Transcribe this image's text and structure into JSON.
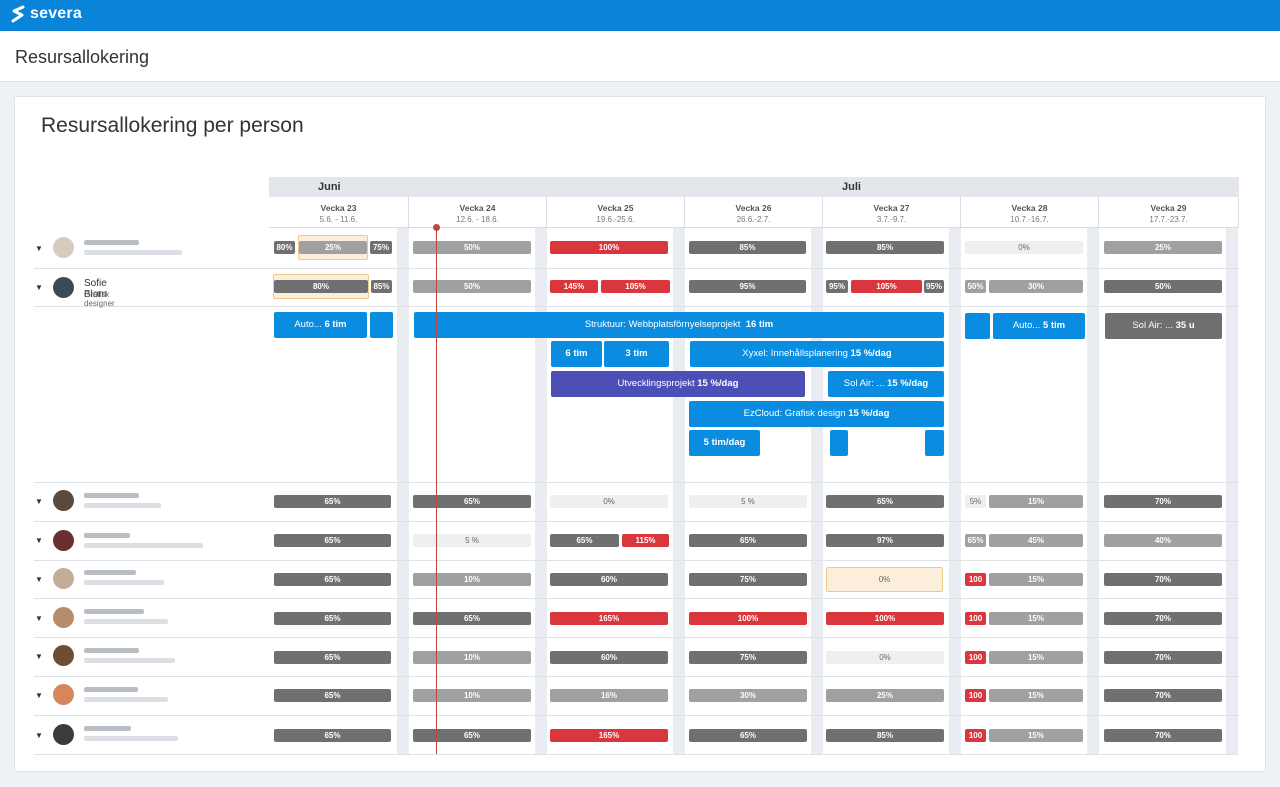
{
  "app": {
    "name": "severa",
    "brand_color": "#0a84d8"
  },
  "page": {
    "title": "Resursallokering"
  },
  "card": {
    "title": "Resursallokering per person"
  },
  "months": [
    {
      "label": "Juni"
    },
    {
      "label": "Juli"
    }
  ],
  "weeks": [
    {
      "name": "Vecka 23",
      "range": "5.6. - 11.6."
    },
    {
      "name": "Vecka 24",
      "range": "12.6. - 18.6."
    },
    {
      "name": "Vecka 25",
      "range": "19.6.-25.6."
    },
    {
      "name": "Vecka 26",
      "range": "26.6.-2.7."
    },
    {
      "name": "Vecka 27",
      "range": "3.7.-9.7."
    },
    {
      "name": "Vecka 28",
      "range": "10.7.-16.7."
    },
    {
      "name": "Vecka 29",
      "range": "17.7.-23.7."
    }
  ],
  "person": {
    "name": "Sofie Blom",
    "role": "Grafisk designer"
  },
  "allocations": {
    "row1": [
      "80%",
      "25%",
      "75%",
      "50%",
      "100%",
      "85%",
      "85%",
      "0%",
      "25%"
    ],
    "row2": [
      "80%",
      "85%",
      "50%",
      "145%",
      "105%",
      "95%",
      "95%",
      "105%",
      "95%",
      "50%",
      "30%",
      "50%"
    ],
    "row3": [
      "65%",
      "65%",
      "0%",
      "5 %",
      "65%",
      "5%",
      "15%",
      "70%"
    ],
    "row4": [
      "65%",
      "5 %",
      "65%",
      "115%",
      "65%",
      "97%",
      "65%",
      "45%",
      "40%"
    ],
    "row5": [
      "65%",
      "10%",
      "60%",
      "75%",
      "0%",
      "100",
      "15%",
      "70%"
    ],
    "row6": [
      "65%",
      "65%",
      "165%",
      "100%",
      "100%",
      "100",
      "15%",
      "70%"
    ],
    "row7": [
      "65%",
      "10%",
      "60%",
      "75%",
      "0%",
      "100",
      "15%",
      "70%"
    ],
    "row8": [
      "65%",
      "10%",
      "16%",
      "30%",
      "25%",
      "100",
      "15%",
      "70%"
    ],
    "row9": [
      "65%",
      "65%",
      "165%",
      "65%",
      "85%",
      "100",
      "15%",
      "70%"
    ]
  },
  "tasks": {
    "auto1_name": "Auto...",
    "auto1_val": "6 tim",
    "struktuur_name": "Struktuur:  Webbplatsförnyelseprojekt",
    "struktuur_val": "16 tim",
    "auto2_name": "Auto...",
    "auto2_val": "5 tim",
    "solair1_name": "Sol Air: ...",
    "solair1_val": "35 u",
    "t6": "6 tim",
    "t3": "3 tim",
    "xyxel_name": "Xyxel: Innehållsplanering",
    "xyxel_val": "15 %/dag",
    "utv_name": "Utvecklingsprojekt",
    "utv_val": "15 %/dag",
    "solair2_name": "Sol Air: ...",
    "solair2_val": "15 %/dag",
    "ezcloud_name": "EzCloud: Grafisk design",
    "ezcloud_val": "15 %/dag",
    "tim5": "5 tim/dag"
  }
}
